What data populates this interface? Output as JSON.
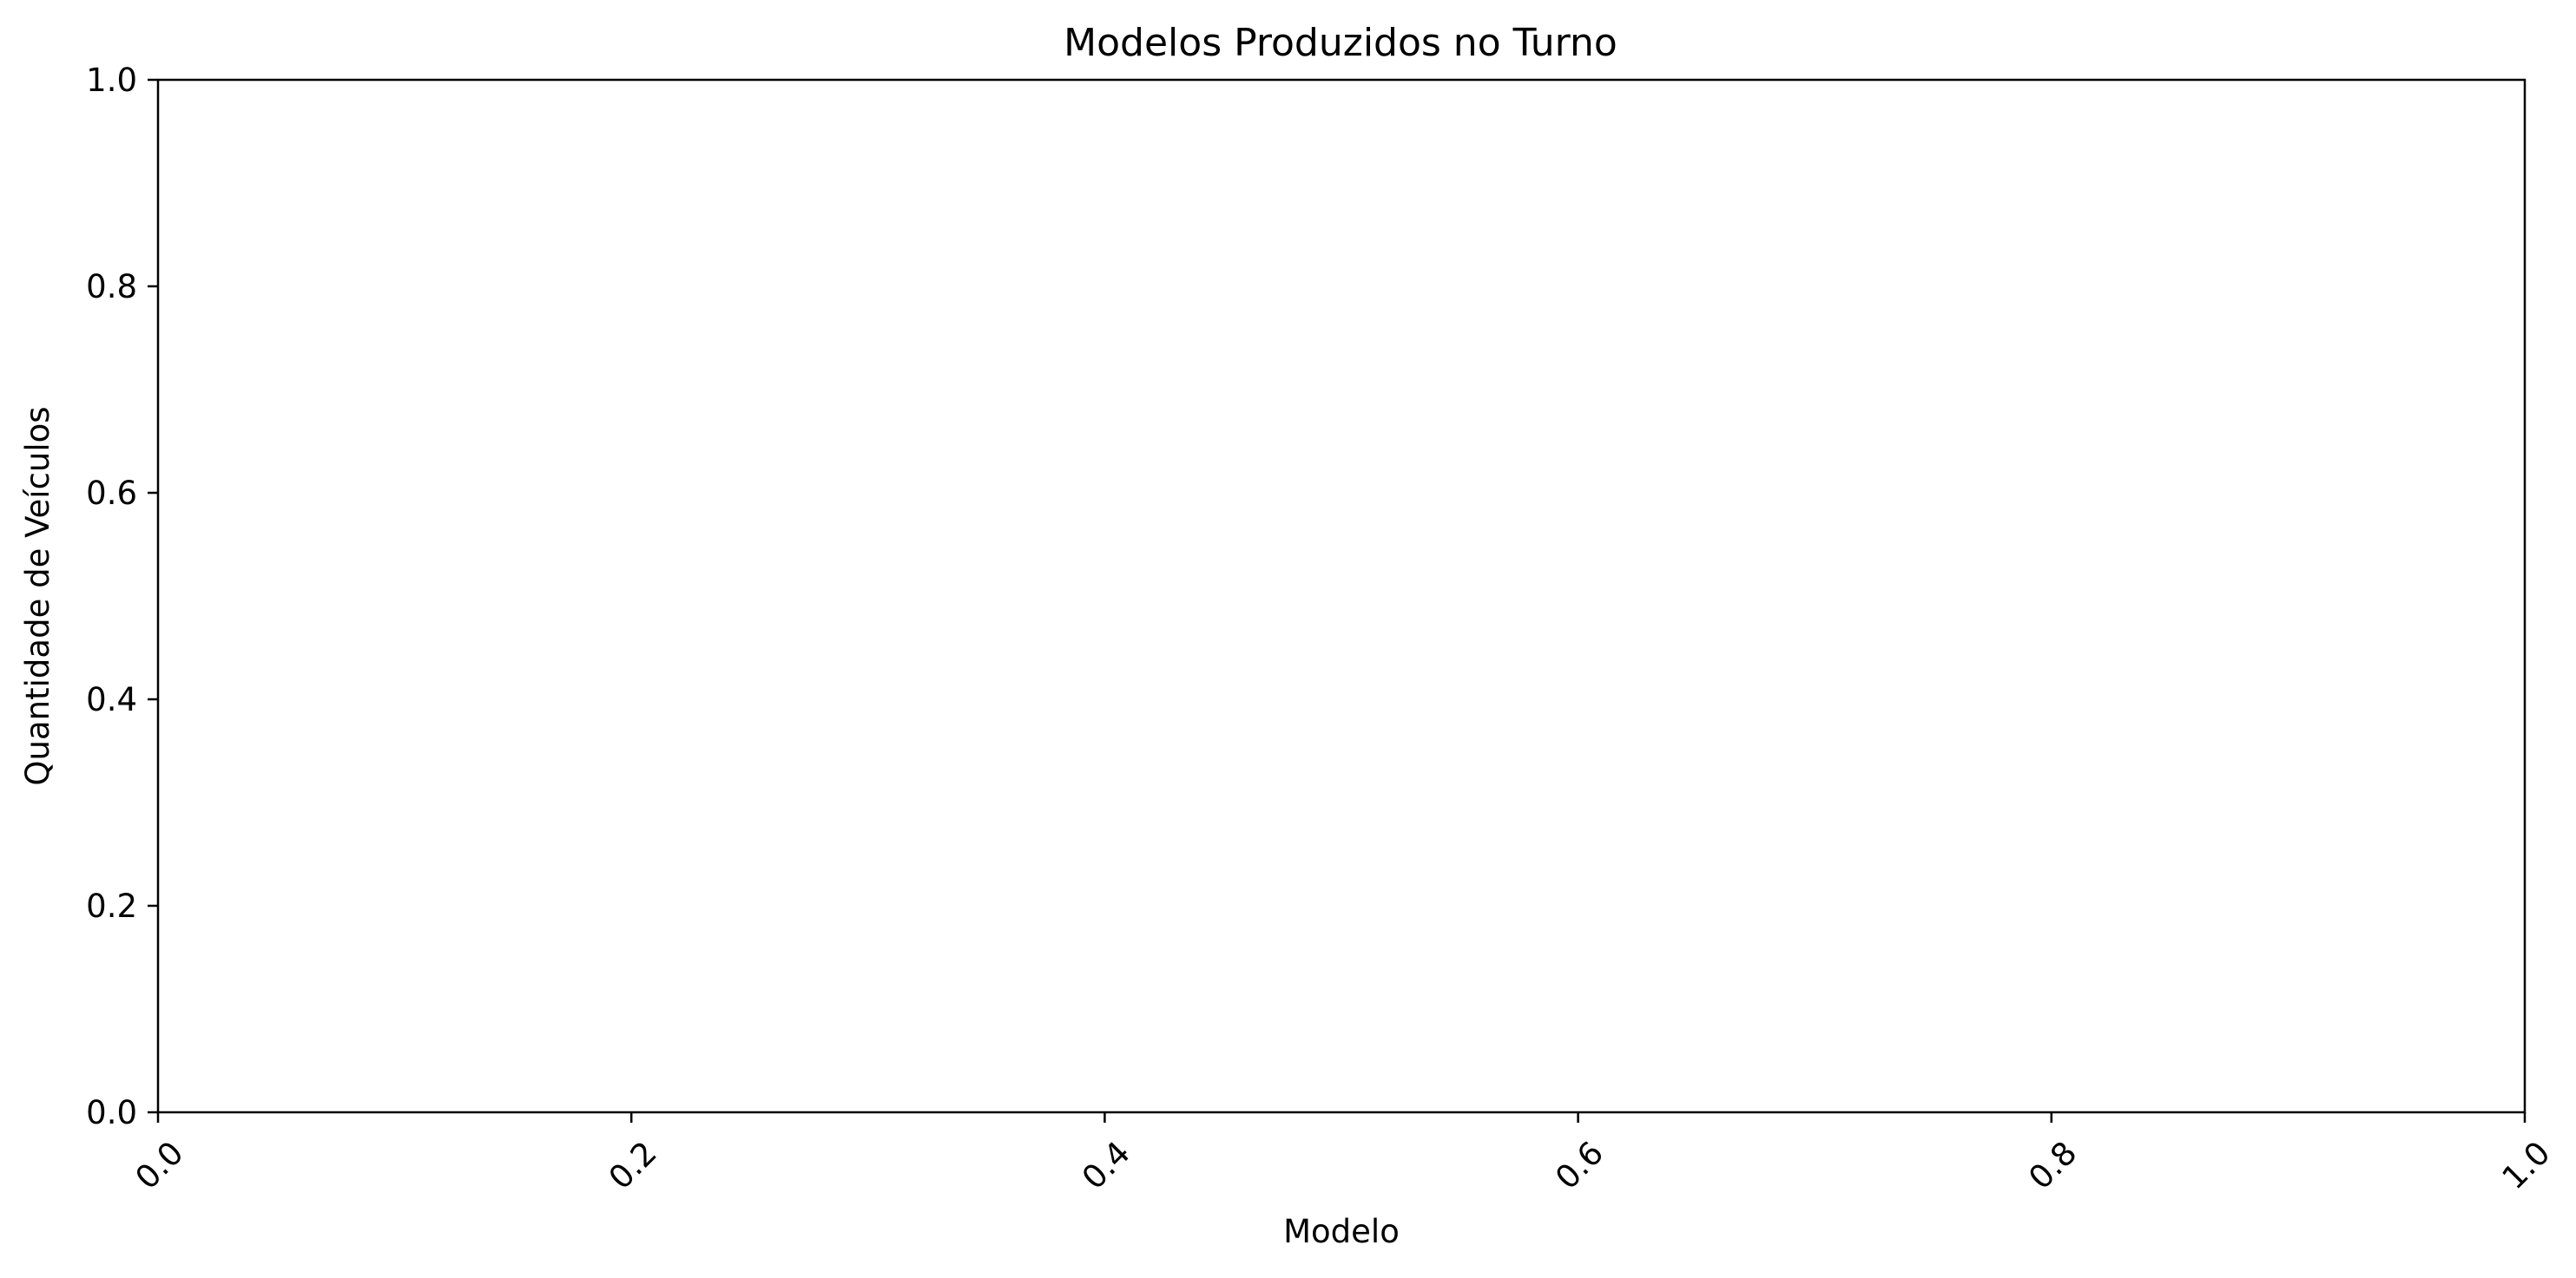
{
  "chart_data": {
    "type": "bar",
    "title": "Modelos Produzidos no Turno",
    "xlabel": "Modelo",
    "ylabel": "Quantidade de Veículos",
    "categories": [],
    "values": [],
    "xlim": [
      0.0,
      1.0
    ],
    "ylim": [
      0.0,
      1.0
    ],
    "x_ticks": [
      "0.0",
      "0.2",
      "0.4",
      "0.6",
      "0.8",
      "1.0"
    ],
    "y_ticks": [
      "0.0",
      "0.2",
      "0.4",
      "0.6",
      "0.8",
      "1.0"
    ],
    "x_tick_rotation_deg": 45,
    "grid": false,
    "legend": "none"
  }
}
